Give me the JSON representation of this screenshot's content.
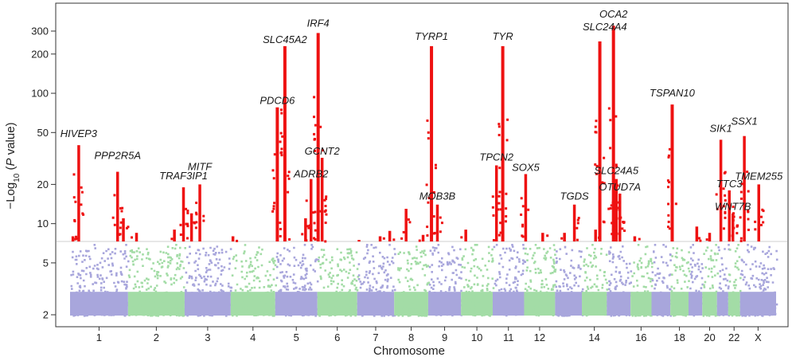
{
  "chart_data": {
    "type": "scatter",
    "subtype": "manhattan",
    "title": "",
    "xlabel": "Chromosome",
    "ylabel_parts": [
      "−Log",
      "10",
      " (",
      "P",
      " value)"
    ],
    "y_scale": "log",
    "ylim": [
      1.8,
      420
    ],
    "yticks": [
      2,
      5,
      10,
      20,
      50,
      100,
      200,
      300
    ],
    "significance_threshold": 7.3,
    "colors": {
      "odd_chromosome": "#a8a6dc",
      "even_chromosome": "#a3dca6",
      "significant": "#ee1111",
      "threshold_line": "#cfcfcf",
      "axis": "#333333"
    },
    "chromosomes": [
      {
        "name": "1",
        "width": 249,
        "label": "1"
      },
      {
        "name": "2",
        "width": 243,
        "label": "2"
      },
      {
        "name": "3",
        "width": 198,
        "label": "3"
      },
      {
        "name": "4",
        "width": 191,
        "label": "4"
      },
      {
        "name": "5",
        "width": 181,
        "label": "5"
      },
      {
        "name": "6",
        "width": 171,
        "label": "6"
      },
      {
        "name": "7",
        "width": 159,
        "label": "7"
      },
      {
        "name": "8",
        "width": 146,
        "label": "8"
      },
      {
        "name": "9",
        "width": 141,
        "label": "9"
      },
      {
        "name": "10",
        "width": 136,
        "label": "10"
      },
      {
        "name": "11",
        "width": 135,
        "label": "11"
      },
      {
        "name": "12",
        "width": 133,
        "label": "12"
      },
      {
        "name": "13",
        "width": 115,
        "label": ""
      },
      {
        "name": "14",
        "width": 107,
        "label": "14"
      },
      {
        "name": "15",
        "width": 102,
        "label": ""
      },
      {
        "name": "16",
        "width": 90,
        "label": "16"
      },
      {
        "name": "17",
        "width": 81,
        "label": ""
      },
      {
        "name": "18",
        "width": 78,
        "label": "18"
      },
      {
        "name": "19",
        "width": 59,
        "label": ""
      },
      {
        "name": "20",
        "width": 63,
        "label": "20"
      },
      {
        "name": "21",
        "width": 48,
        "label": ""
      },
      {
        "name": "22",
        "width": 51,
        "label": "22"
      },
      {
        "name": "X",
        "width": 155,
        "label": "X"
      }
    ],
    "peaks": [
      {
        "chr": "1",
        "pos": 0.05,
        "p": 8
      },
      {
        "chr": "1",
        "pos": 0.15,
        "p": 40,
        "gene": "HIVEP3"
      },
      {
        "chr": "1",
        "pos": 0.82,
        "p": 25,
        "gene": "PPP2R5A"
      },
      {
        "chr": "1",
        "pos": 0.92,
        "p": 11
      },
      {
        "chr": "2",
        "pos": 0.15,
        "p": 8.5
      },
      {
        "chr": "2",
        "pos": 0.82,
        "p": 9
      },
      {
        "chr": "2",
        "pos": 0.98,
        "p": 19,
        "gene": "TRAF3IP1"
      },
      {
        "chr": "3",
        "pos": 0.15,
        "p": 12
      },
      {
        "chr": "3",
        "pos": 0.33,
        "p": 20,
        "gene": "MITF"
      },
      {
        "chr": "4",
        "pos": 0.05,
        "p": 8
      },
      {
        "chr": "5",
        "pos": 0.05,
        "p": 78,
        "gene": "PDCD6"
      },
      {
        "chr": "5",
        "pos": 0.23,
        "p": 230,
        "gene": "SLC45A2"
      },
      {
        "chr": "5",
        "pos": 0.72,
        "p": 11
      },
      {
        "chr": "5",
        "pos": 0.85,
        "p": 22,
        "gene": "ADRB2"
      },
      {
        "chr": "6",
        "pos": 0.02,
        "p": 290,
        "gene": "IRF4"
      },
      {
        "chr": "6",
        "pos": 0.12,
        "p": 32,
        "gene": "GCNT2"
      },
      {
        "chr": "7",
        "pos": 0.05,
        "p": 7.5
      },
      {
        "chr": "7",
        "pos": 0.62,
        "p": 8
      },
      {
        "chr": "7",
        "pos": 0.88,
        "p": 8.8
      },
      {
        "chr": "8",
        "pos": 0.35,
        "p": 13
      },
      {
        "chr": "8",
        "pos": 0.85,
        "p": 8.2
      },
      {
        "chr": "9",
        "pos": 0.1,
        "p": 230,
        "gene": "TYRP1"
      },
      {
        "chr": "9",
        "pos": 0.28,
        "p": 14,
        "gene": "MOB3B"
      },
      {
        "chr": "10",
        "pos": 0.15,
        "p": 9
      },
      {
        "chr": "11",
        "pos": 0.12,
        "p": 28,
        "gene": "TPCN2"
      },
      {
        "chr": "11",
        "pos": 0.32,
        "p": 230,
        "gene": "TYR"
      },
      {
        "chr": "12",
        "pos": 0.05,
        "p": 24,
        "gene": "SOX5"
      },
      {
        "chr": "12",
        "pos": 0.6,
        "p": 8.5
      },
      {
        "chr": "13",
        "pos": 0.35,
        "p": 8.5
      },
      {
        "chr": "13",
        "pos": 0.72,
        "p": 14,
        "gene": "TGDS"
      },
      {
        "chr": "14",
        "pos": 0.55,
        "p": 9
      },
      {
        "chr": "14",
        "pos": 0.72,
        "p": 250,
        "gene": "SLC24A4"
      },
      {
        "chr": "15",
        "pos": 0.28,
        "p": 330,
        "gene": "OCA2"
      },
      {
        "chr": "15",
        "pos": 0.4,
        "p": 22,
        "gene": "SLC24A5"
      },
      {
        "chr": "15",
        "pos": 0.55,
        "p": 17,
        "gene": "OTUD7A"
      },
      {
        "chr": "16",
        "pos": 0.2,
        "p": 8
      },
      {
        "chr": "18",
        "pos": 0.1,
        "p": 82,
        "gene": "TSPAN10"
      },
      {
        "chr": "19",
        "pos": 0.6,
        "p": 9.5
      },
      {
        "chr": "20",
        "pos": 0.5,
        "p": 8.5
      },
      {
        "chr": "21",
        "pos": 0.35,
        "p": 44,
        "gene": "SIK1"
      },
      {
        "chr": "22",
        "pos": 0.1,
        "p": 18,
        "gene": "TTC3"
      },
      {
        "chr": "22",
        "pos": 0.4,
        "p": 12,
        "gene": "WNT7B"
      },
      {
        "chr": "X",
        "pos": 0.12,
        "p": 47,
        "gene": "SSX1"
      },
      {
        "chr": "X",
        "pos": 0.52,
        "p": 20,
        "gene": "TMEM255"
      }
    ],
    "annotations": [
      {
        "text": "HIVEP3",
        "chr": "1",
        "pos": 0.15,
        "p": 40,
        "anchor": "middle",
        "dy": -8
      },
      {
        "text": "PPP2R5A",
        "chr": "1",
        "pos": 0.82,
        "p": 25,
        "anchor": "middle",
        "dy": -14
      },
      {
        "text": "TRAF3IP1",
        "chr": "2",
        "pos": 0.98,
        "p": 19,
        "anchor": "middle",
        "dy": -8
      },
      {
        "text": "MITF",
        "chr": "3",
        "pos": 0.33,
        "p": 20,
        "anchor": "middle",
        "dy": -16
      },
      {
        "text": "PDCD6",
        "chr": "5",
        "pos": 0.05,
        "p": 78,
        "anchor": "middle",
        "dy": -2
      },
      {
        "text": "SLC45A2",
        "chr": "5",
        "pos": 0.23,
        "p": 230,
        "anchor": "middle",
        "dy": -2
      },
      {
        "text": "ADRB2",
        "chr": "5",
        "pos": 0.85,
        "p": 22,
        "anchor": "middle",
        "dy": 0
      },
      {
        "text": "IRF4",
        "chr": "6",
        "pos": 0.02,
        "p": 290,
        "anchor": "middle",
        "dy": -6
      },
      {
        "text": "GCNT2",
        "chr": "6",
        "pos": 0.12,
        "p": 32,
        "anchor": "middle",
        "dy": -2
      },
      {
        "text": "TYRP1",
        "chr": "9",
        "pos": 0.1,
        "p": 230,
        "anchor": "middle",
        "dy": -6
      },
      {
        "text": "MOB3B",
        "chr": "9",
        "pos": 0.28,
        "p": 14,
        "anchor": "middle",
        "dy": -4
      },
      {
        "text": "TPCN2",
        "chr": "11",
        "pos": 0.12,
        "p": 28,
        "anchor": "middle",
        "dy": -4
      },
      {
        "text": "TYR",
        "chr": "11",
        "pos": 0.32,
        "p": 230,
        "anchor": "middle",
        "dy": -6
      },
      {
        "text": "SOX5",
        "chr": "12",
        "pos": 0.05,
        "p": 24,
        "anchor": "middle",
        "dy": -2
      },
      {
        "text": "TGDS",
        "chr": "13",
        "pos": 0.72,
        "p": 14,
        "anchor": "middle",
        "dy": -4
      },
      {
        "text": "OCA2",
        "chr": "15",
        "pos": 0.28,
        "p": 330,
        "anchor": "middle",
        "dy": -8
      },
      {
        "text": "SLC24A4",
        "chr": "14",
        "pos": 0.92,
        "p": 250,
        "anchor": "middle",
        "dy": -12
      },
      {
        "text": "SLC24A5",
        "chr": "15",
        "pos": 0.4,
        "p": 22,
        "anchor": "middle",
        "dy": -4
      },
      {
        "text": "OTUD7A",
        "chr": "15",
        "pos": 0.55,
        "p": 17,
        "anchor": "middle",
        "dy": -2
      },
      {
        "text": "TSPAN10",
        "chr": "18",
        "pos": 0.1,
        "p": 82,
        "anchor": "middle",
        "dy": -8
      },
      {
        "text": "SIK1",
        "chr": "21",
        "pos": 0.35,
        "p": 44,
        "anchor": "middle",
        "dy": -8
      },
      {
        "text": "SSX1",
        "chr": "X",
        "pos": 0.12,
        "p": 47,
        "anchor": "middle",
        "dy": -12
      },
      {
        "text": "TTC3",
        "chr": "22",
        "pos": 0.1,
        "p": 18,
        "anchor": "middle",
        "dy": -2
      },
      {
        "text": "WNT7B",
        "chr": "22",
        "pos": 0.4,
        "p": 12,
        "anchor": "middle",
        "dy": -2
      },
      {
        "text": "TMEM255",
        "chr": "X",
        "pos": 0.52,
        "p": 20,
        "anchor": "middle",
        "dy": -4
      }
    ]
  }
}
